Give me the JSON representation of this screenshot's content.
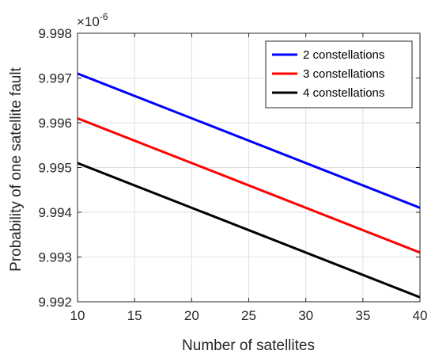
{
  "chart_data": {
    "type": "line",
    "xlabel": "Number of satellites",
    "ylabel": "Probability of one satellite fault",
    "y_multiplier": {
      "base": "×10",
      "exponent": "-6"
    },
    "xlim": [
      10,
      40
    ],
    "ylim": [
      9.992,
      9.998
    ],
    "x_ticks": [
      10,
      15,
      20,
      25,
      30,
      35,
      40
    ],
    "x_tick_labels": [
      "10",
      "15",
      "20",
      "25",
      "30",
      "35",
      "40"
    ],
    "y_ticks": [
      9.992,
      9.993,
      9.994,
      9.995,
      9.996,
      9.997,
      9.998
    ],
    "y_tick_labels": [
      "9.992",
      "9.993",
      "9.994",
      "9.995",
      "9.996",
      "9.997",
      "9.998"
    ],
    "grid": true,
    "legend_position": "top-right",
    "series": [
      {
        "name": "2 constellations",
        "color": "#0000ff",
        "x": [
          10,
          40
        ],
        "y": [
          9.9971,
          9.9941
        ]
      },
      {
        "name": "3 constellations",
        "color": "#ff0000",
        "x": [
          10,
          40
        ],
        "y": [
          9.9961,
          9.9931
        ]
      },
      {
        "name": "4 constellations",
        "color": "#000000",
        "x": [
          10,
          40
        ],
        "y": [
          9.9951,
          9.9921
        ]
      }
    ]
  }
}
